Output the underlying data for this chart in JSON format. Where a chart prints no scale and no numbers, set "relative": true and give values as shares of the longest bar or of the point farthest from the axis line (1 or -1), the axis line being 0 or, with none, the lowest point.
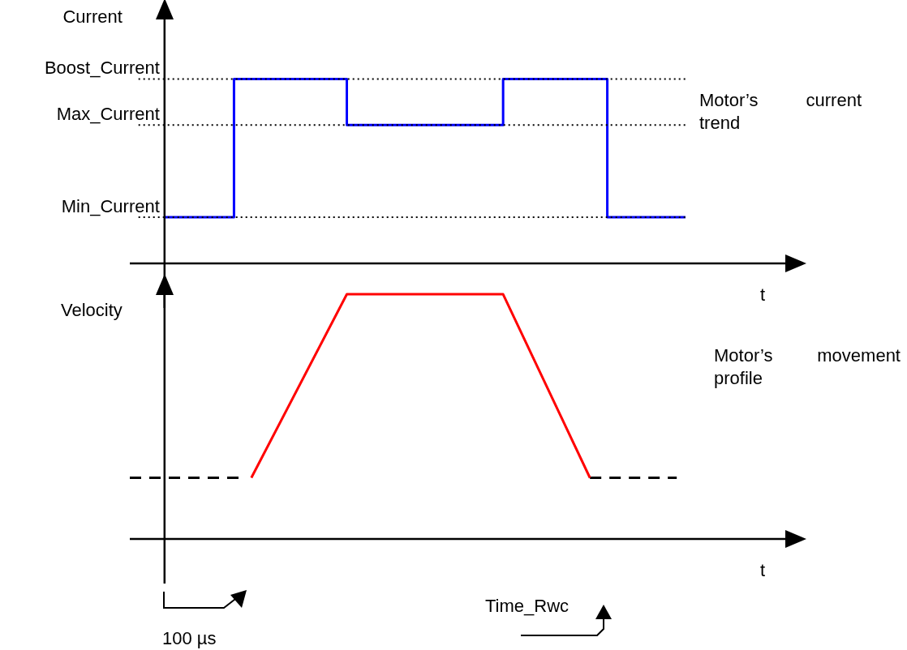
{
  "chart_data": [
    {
      "type": "step",
      "ylabel": "Current",
      "xlabel": "t",
      "relative": true,
      "categories": [
        null,
        null,
        null,
        null,
        null,
        null,
        null,
        null,
        null,
        null,
        null,
        null,
        null,
        null,
        null,
        null,
        null,
        null,
        null,
        null,
        null,
        null,
        null,
        null,
        null,
        null,
        null,
        null,
        null,
        null,
        null,
        null,
        null,
        null,
        null,
        null,
        null,
        null,
        null,
        null,
        null,
        null,
        null,
        null,
        null,
        null,
        null,
        null,
        null,
        null,
        null,
        null,
        null,
        null,
        null,
        null,
        null,
        null,
        null,
        null,
        null,
        null,
        null,
        null,
        null,
        null,
        null,
        null,
        null,
        null,
        null,
        null,
        null,
        null,
        null,
        null,
        null,
        null
      ],
      "series": [
        {
          "color": "#0000ff",
          "values": [
            null,
            null,
            null,
            null,
            0.25,
            0.25,
            0.25,
            0.25,
            0.25,
            0.25,
            0.25,
            0.25,
            1,
            1,
            1,
            1,
            1,
            1,
            1,
            1,
            1,
            1,
            1,
            1,
            1,
            0.75,
            0.75,
            0.75,
            0.75,
            0.75,
            0.75,
            0.75,
            0.75,
            0.75,
            0.75,
            0.75,
            0.75,
            0.75,
            0.75,
            0.75,
            0.75,
            0.75,
            0.75,
            1,
            1,
            1,
            1,
            1,
            1,
            1,
            1,
            1,
            1,
            1,
            1,
            0.25,
            0.25,
            0.25,
            0.25,
            0.25,
            0.25,
            0.25,
            0.25,
            0.25,
            0.25,
            null,
            null,
            null,
            null,
            null,
            null,
            null,
            null,
            null,
            null,
            null,
            null,
            null
          ]
        }
      ],
      "ref_lines": [
        {
          "axis": "y",
          "value": 1,
          "label": "Boost_Current",
          "line_style": "dotted",
          "color": "#000000"
        },
        {
          "axis": "y",
          "value": 0.75,
          "label": "Max_Current",
          "line_style": "dotted",
          "color": "#000000"
        },
        {
          "axis": "y",
          "value": 0.25,
          "label": "Min_Current",
          "line_style": "dotted",
          "color": "#000000"
        }
      ],
      "annotations": [
        "Motor’s current trend"
      ]
    },
    {
      "type": "line",
      "ylabel": "Velocity",
      "xlabel": "t",
      "relative": true,
      "categories": [
        null,
        null,
        null,
        null,
        null,
        null,
        null,
        null,
        null,
        null,
        null,
        null,
        null,
        null,
        null,
        null,
        null,
        null,
        null,
        null,
        null,
        null,
        null,
        null,
        null,
        null,
        null,
        null,
        null,
        null,
        null,
        null,
        null,
        null,
        null,
        null,
        null,
        null,
        null,
        null,
        null,
        null,
        null,
        null,
        null,
        null,
        null,
        null,
        null,
        null,
        null,
        null,
        null,
        null,
        null,
        null,
        null,
        null,
        null,
        null,
        null,
        null,
        null,
        null,
        null,
        null,
        null,
        null,
        null,
        null,
        null,
        null,
        null,
        null,
        null,
        null,
        null,
        null
      ],
      "series": [
        {
          "color": "#ff0000",
          "values": [
            null,
            null,
            null,
            null,
            null,
            null,
            null,
            null,
            null,
            null,
            null,
            null,
            null,
            null,
            0.25,
            null,
            null,
            null,
            null,
            null,
            null,
            null,
            null,
            null,
            null,
            1,
            null,
            null,
            null,
            null,
            null,
            null,
            null,
            null,
            null,
            null,
            null,
            null,
            null,
            null,
            null,
            null,
            null,
            1,
            null,
            null,
            null,
            null,
            null,
            null,
            null,
            null,
            null,
            0.25,
            null,
            null,
            null,
            null,
            null,
            null,
            null,
            null,
            null,
            null,
            null,
            null,
            null,
            null,
            null,
            null,
            null,
            null,
            null,
            null,
            null,
            null,
            null,
            null
          ]
        },
        {
          "color": "#000000",
          "line_style": "dashed",
          "values": [
            0.25,
            0.25,
            0.25,
            0.25,
            0.25,
            0.25,
            0.25,
            0.25,
            0.25,
            0.25,
            0.25,
            0.25,
            0.25,
            0.25,
            null,
            null,
            null,
            null,
            null,
            null,
            null,
            null,
            null,
            null,
            null,
            null,
            null,
            null,
            null,
            null,
            null,
            null,
            null,
            null,
            null,
            null,
            null,
            null,
            null,
            null,
            null,
            null,
            null,
            null,
            null,
            null,
            null,
            null,
            null,
            null,
            null,
            null,
            null,
            0.25,
            0.25,
            0.25,
            0.25,
            0.25,
            0.25,
            0.25,
            0.25,
            0.25,
            0.25,
            0.25,
            null,
            null,
            null,
            null,
            null,
            null,
            null,
            null,
            null,
            null,
            null,
            null,
            null,
            null
          ]
        }
      ],
      "annotations": [
        "Motor’s movement profile",
        "100 µs",
        "Time_Rwc"
      ]
    }
  ]
}
